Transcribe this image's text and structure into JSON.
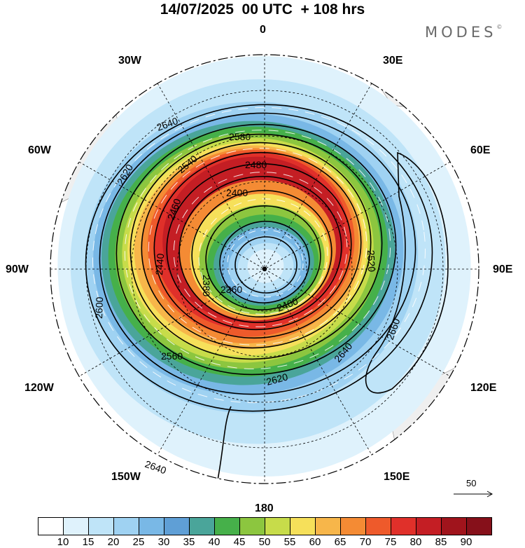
{
  "title": "14/07/2025  00 UTC  + 108 hrs",
  "brand": "MODES",
  "brand_mark": "©",
  "longitude_labels": [
    "0",
    "30E",
    "60E",
    "90E",
    "120E",
    "150E",
    "180",
    "150W",
    "120W",
    "90W",
    "60W",
    "30W"
  ],
  "contour_labels": [
    "2640",
    "2580",
    "2480",
    "2620",
    "2540",
    "2460",
    "2400",
    "2520",
    "2600",
    "2440",
    "2380",
    "2360",
    "2400",
    "2560",
    "2640",
    "2660",
    "2620",
    "2640"
  ],
  "colorbar": {
    "labels": [
      "10",
      "15",
      "20",
      "25",
      "30",
      "35",
      "40",
      "45",
      "50",
      "55",
      "60",
      "65",
      "70",
      "75",
      "80",
      "85",
      "90"
    ],
    "colors": [
      "#ffffff",
      "#dff2fc",
      "#bfe4f8",
      "#9fd2f2",
      "#79b8e6",
      "#5f9fd6",
      "#4aa59a",
      "#46b04a",
      "#8cc63f",
      "#c7dc4a",
      "#f6e05a",
      "#f7b64a",
      "#f48b34",
      "#ee5a2b",
      "#e0302a",
      "#c41e24",
      "#a0141c",
      "#86101a"
    ]
  },
  "vector_reference": "50",
  "icons": [
    "pole-marker-icon",
    "arrow-right-icon"
  ]
}
